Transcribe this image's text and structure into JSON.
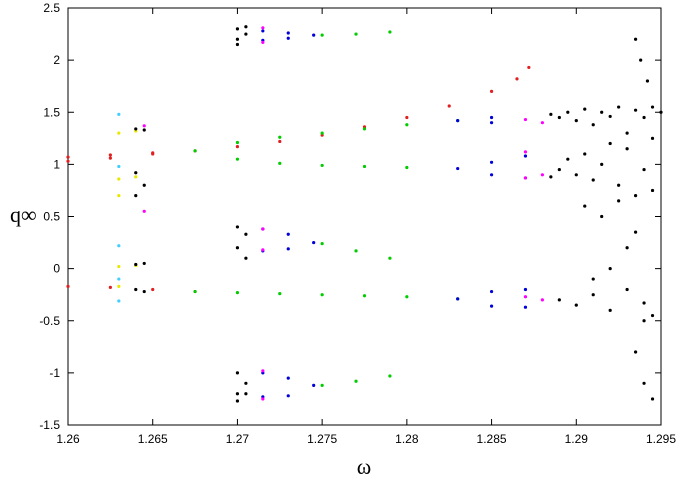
{
  "chart_data": {
    "type": "scatter",
    "xlabel": "ω",
    "ylabel": "q∞",
    "xlim": [
      1.26,
      1.295
    ],
    "ylim": [
      -1.5,
      2.5
    ],
    "xticks": [
      1.26,
      1.265,
      1.27,
      1.275,
      1.28,
      1.285,
      1.29,
      1.295
    ],
    "yticks": [
      -1.5,
      -1,
      -0.5,
      0,
      0.5,
      1,
      1.5,
      2,
      2.5
    ],
    "series": [
      {
        "color": "#e02020",
        "x": [
          1.26,
          1.2625,
          1.265,
          1.2675,
          1.27,
          1.2725,
          1.275,
          1.2775,
          1.28,
          1.2825,
          1.285,
          1.2865,
          1.2872,
          1.26,
          1.2625,
          1.265,
          1.26,
          1.2625,
          1.265,
          1.2675
        ],
        "values": [
          1.03,
          1.06,
          1.1,
          1.13,
          1.17,
          1.22,
          1.28,
          1.36,
          1.45,
          1.56,
          1.7,
          1.82,
          1.93,
          1.07,
          1.09,
          1.11,
          -0.17,
          -0.18,
          -0.2,
          -0.22
        ]
      },
      {
        "color": "#00cc00",
        "x": [
          1.2675,
          1.27,
          1.2725,
          1.275,
          1.2775,
          1.28,
          1.283,
          1.27,
          1.2725,
          1.275,
          1.2775,
          1.28,
          1.2675,
          1.27,
          1.2725,
          1.275,
          1.2775,
          1.28,
          1.283,
          1.275,
          1.277,
          1.279,
          1.275,
          1.277,
          1.279,
          1.275,
          1.277,
          1.279
        ],
        "values": [
          1.13,
          1.21,
          1.26,
          1.3,
          1.34,
          1.38,
          1.42,
          1.05,
          1.01,
          0.99,
          0.98,
          0.97,
          -0.22,
          -0.23,
          -0.24,
          -0.25,
          -0.26,
          -0.27,
          -0.29,
          2.24,
          2.25,
          2.27,
          0.24,
          0.17,
          0.1,
          -1.12,
          -1.08,
          -1.03
        ]
      },
      {
        "color": "#0000dd",
        "x": [
          1.2715,
          1.273,
          1.2745,
          1.2715,
          1.273,
          1.2715,
          1.273,
          1.2745,
          1.2715,
          1.273,
          1.2715,
          1.273,
          1.2745,
          1.2715,
          1.273,
          1.283,
          1.285,
          1.287,
          1.285,
          1.287,
          1.283,
          1.285,
          1.285,
          1.283,
          1.285,
          1.285,
          1.287,
          1.287
        ],
        "values": [
          2.28,
          2.26,
          2.24,
          2.19,
          2.21,
          0.38,
          0.33,
          0.25,
          0.17,
          0.19,
          -1.0,
          -1.05,
          -1.12,
          -1.23,
          -1.22,
          0.96,
          0.9,
          0.87,
          1.02,
          1.08,
          1.42,
          1.4,
          1.45,
          -0.29,
          -0.22,
          -0.36,
          -0.2,
          -0.37
        ]
      },
      {
        "color": "#ff00ff",
        "x": [
          1.2715,
          1.2715,
          1.2715,
          1.2715,
          1.2715,
          1.2715,
          1.287,
          1.287,
          1.287,
          1.287,
          1.288,
          1.288,
          1.288,
          1.2645,
          1.2645
        ],
        "values": [
          2.31,
          2.17,
          0.38,
          0.18,
          -0.98,
          -1.25,
          1.43,
          0.87,
          1.12,
          -0.27,
          1.4,
          0.9,
          -0.3,
          0.55,
          1.37
        ]
      },
      {
        "color": "#e8e800",
        "x": [
          1.263,
          1.263,
          1.263,
          1.263,
          1.263,
          1.264,
          1.264,
          1.264
        ],
        "values": [
          1.3,
          0.86,
          0.7,
          0.02,
          -0.17,
          1.32,
          0.88,
          0.03
        ]
      },
      {
        "color": "#40d0ff",
        "x": [
          1.263,
          1.263,
          1.263,
          1.263,
          1.263
        ],
        "values": [
          1.48,
          0.98,
          0.22,
          -0.1,
          -0.31
        ]
      },
      {
        "color": "#000000",
        "x": [
          1.264,
          1.264,
          1.264,
          1.264,
          1.264,
          1.2645,
          1.2645,
          1.2645,
          1.2645,
          1.27,
          1.27,
          1.27,
          1.27,
          1.27,
          1.27,
          1.27,
          1.27,
          1.2705,
          1.2705,
          1.2705,
          1.2705,
          1.2705,
          1.2705,
          1.2885,
          1.289,
          1.2895,
          1.29,
          1.2905,
          1.291,
          1.2915,
          1.292,
          1.2925,
          1.293,
          1.2935,
          1.294,
          1.2945,
          1.295,
          1.2885,
          1.289,
          1.2895,
          1.29,
          1.2905,
          1.291,
          1.2915,
          1.292,
          1.2925,
          1.293,
          1.2935,
          1.294,
          1.2945,
          1.289,
          1.29,
          1.291,
          1.292,
          1.293,
          1.294,
          1.2945,
          1.2905,
          1.2915,
          1.2925,
          1.2935,
          1.2945,
          1.291,
          1.292,
          1.293,
          1.294,
          1.2935,
          1.2938,
          1.2942,
          1.2935,
          1.294,
          1.2945
        ],
        "values": [
          1.34,
          0.92,
          0.7,
          0.04,
          -0.2,
          1.33,
          0.8,
          0.05,
          -0.22,
          2.3,
          2.2,
          2.15,
          0.4,
          0.2,
          -1.0,
          -1.2,
          -1.27,
          2.32,
          2.25,
          0.33,
          0.1,
          -1.1,
          -1.2,
          1.48,
          1.45,
          1.5,
          1.42,
          1.53,
          1.38,
          1.5,
          1.46,
          1.55,
          1.3,
          1.52,
          1.45,
          1.55,
          1.5,
          0.88,
          0.95,
          1.05,
          0.9,
          1.1,
          0.85,
          1.0,
          1.2,
          0.8,
          1.15,
          0.7,
          0.95,
          1.25,
          -0.3,
          -0.35,
          -0.25,
          -0.4,
          -0.2,
          -0.33,
          -0.45,
          0.6,
          0.5,
          0.65,
          0.35,
          0.75,
          -0.1,
          0.0,
          0.2,
          -0.5,
          2.2,
          2.0,
          1.8,
          -0.8,
          -1.1,
          -1.25
        ]
      }
    ]
  }
}
